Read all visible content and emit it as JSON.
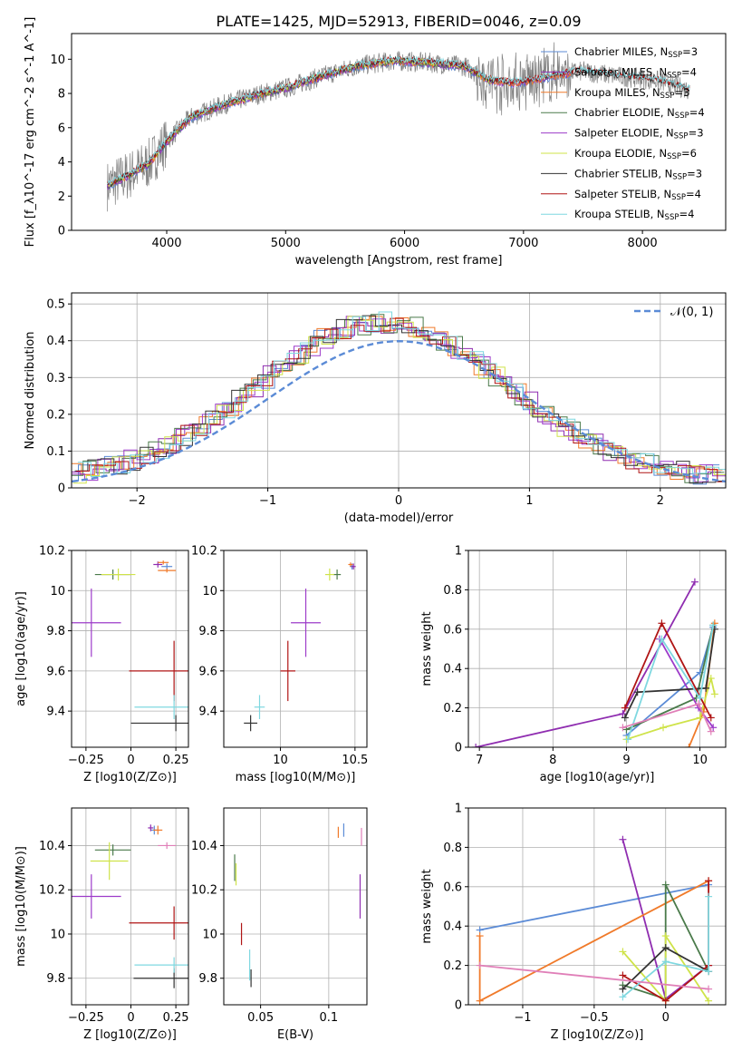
{
  "figure": {
    "title": "PLATE=1425, MJD=52913, FIBERID=0046, z=0.09"
  },
  "colors": {
    "Chabrier MILES": "#5b8bd6",
    "Salpeter MILES": "#8f2db0",
    "Kroupa MILES": "#f07a2a",
    "Chabrier ELODIE": "#4a7a4a",
    "Salpeter ELODIE": "#9d3bc9",
    "Kroupa ELODIE": "#cfe34a",
    "Chabrier STELIB": "#333333",
    "Salpeter STELIB": "#b01515",
    "Kroupa STELIB": "#7fd8e0"
  },
  "chart_data": [
    {
      "type": "line",
      "id": "spectrum",
      "xlabel": "wavelength [Angstrom, rest frame]",
      "ylabel": "Flux [f_λ10^-17 erg cm^-2 s^-1 A^-1]",
      "xlim": [
        3200,
        8700
      ],
      "ylim": [
        0,
        11.5
      ],
      "xticks": [
        4000,
        5000,
        6000,
        7000,
        8000
      ],
      "yticks": [
        0,
        2,
        4,
        6,
        8,
        10
      ],
      "legend_position": "top-right",
      "x_data_range": [
        3500,
        8400
      ],
      "data_trend": {
        "x": [
          3500,
          3700,
          3850,
          4000,
          4200,
          4500,
          4800,
          5000,
          5300,
          5600,
          5900,
          6200,
          6500,
          6700,
          6900,
          7100,
          7300,
          7500,
          7800,
          8100,
          8400
        ],
        "y": [
          2.6,
          3.3,
          3.9,
          5.2,
          6.6,
          7.4,
          8.0,
          8.3,
          9.0,
          9.6,
          9.9,
          9.8,
          9.6,
          8.8,
          8.6,
          8.8,
          9.1,
          9.3,
          9.0,
          8.8,
          8.2
        ]
      },
      "series": [
        {
          "name": "Chabrier MILES, N_SSP=3",
          "name_main": "Chabrier MILES, N",
          "name_sub": "SSP",
          "name_tail": "=3",
          "x_max": 7400
        },
        {
          "name": "Salpeter MILES, N_SSP=4",
          "name_main": "Salpeter MILES, N",
          "name_sub": "SSP",
          "name_tail": "=4",
          "x_max": 7400
        },
        {
          "name": "Kroupa MILES, N_SSP=3",
          "name_main": "Kroupa MILES, N",
          "name_sub": "SSP",
          "name_tail": "=3",
          "x_max": 7400
        },
        {
          "name": "Chabrier ELODIE, N_SSP=4",
          "name_main": "Chabrier ELODIE, N",
          "name_sub": "SSP",
          "name_tail": "=4",
          "x_max": 6800
        },
        {
          "name": "Salpeter ELODIE, N_SSP=3",
          "name_main": "Salpeter ELODIE, N",
          "name_sub": "SSP",
          "name_tail": "=3",
          "x_max": 6800
        },
        {
          "name": "Kroupa ELODIE, N_SSP=6",
          "name_main": "Kroupa ELODIE, N",
          "name_sub": "SSP",
          "name_tail": "=6",
          "x_max": 6800
        },
        {
          "name": "Chabrier STELIB, N_SSP=3",
          "name_main": "Chabrier STELIB, N",
          "name_sub": "SSP",
          "name_tail": "=3",
          "x_max": 8400
        },
        {
          "name": "Salpeter STELIB, N_SSP=4",
          "name_main": "Salpeter STELIB, N",
          "name_sub": "SSP",
          "name_tail": "=4",
          "x_max": 8400
        },
        {
          "name": "Kroupa STELIB, N_SSP=4",
          "name_main": "Kroupa STELIB, N",
          "name_sub": "SSP",
          "name_tail": "=4",
          "x_max": 8400
        }
      ]
    },
    {
      "type": "line",
      "id": "residuals",
      "xlabel": "(data-model)/error",
      "ylabel": "Normed distribution",
      "xlim": [
        -2.5,
        2.5
      ],
      "ylim": [
        0,
        0.53
      ],
      "xticks": [
        -2,
        -1,
        0,
        1,
        2
      ],
      "yticks": [
        0.0,
        0.1,
        0.2,
        0.3,
        0.4,
        0.5
      ],
      "legend": "𝒩(0, 1)",
      "legend_position": "top-right",
      "gaussian": {
        "mean": 0,
        "sigma": 1
      },
      "bins": 50,
      "grid": true
    },
    {
      "type": "scatter",
      "id": "age_vs_Z",
      "xlabel": "Z [log10(Z/Z⊙)]",
      "ylabel": "age [log10(age/yr)]",
      "xlim": [
        -0.33,
        0.32
      ],
      "ylim": [
        9.22,
        10.2
      ],
      "xticks": [
        -0.25,
        0.0,
        0.25
      ],
      "yticks": [
        9.4,
        9.6,
        9.8,
        10.0,
        10.2
      ],
      "grid": true,
      "points": [
        {
          "model": "Chabrier MILES",
          "x": 0.2,
          "y": 10.12,
          "xerr": 0.06,
          "yerr": 0.03
        },
        {
          "model": "Salpeter MILES",
          "x": 0.15,
          "y": 10.13,
          "xerr": 0.05,
          "yerr": 0.03
        },
        {
          "model": "Kroupa MILES",
          "x": 0.18,
          "y": 10.14,
          "xerr": 0.06,
          "yerr": 0.02
        },
        {
          "model": "Chabrier ELODIE",
          "x": -0.1,
          "y": 10.08,
          "xerr": 0.2,
          "yerr": 0.05
        },
        {
          "model": "Salpeter ELODIE",
          "x": -0.22,
          "y": 9.84,
          "xerr": 0.33,
          "yerr": 0.34
        },
        {
          "model": "Kroupa ELODIE",
          "x": -0.07,
          "y": 10.08,
          "xerr": 0.19,
          "yerr": 0.06
        },
        {
          "model": "Chabrier STELIB",
          "x": 0.25,
          "y": 9.34,
          "xerr": 0.5,
          "yerr": 0.08
        },
        {
          "model": "Salpeter STELIB",
          "x": 0.24,
          "y": 9.6,
          "xerr": 0.5,
          "yerr": 0.3
        },
        {
          "model": "Kroupa STELIB",
          "x": 0.24,
          "y": 9.42,
          "xerr": 0.44,
          "yerr": 0.12
        },
        {
          "model": "Kroupa MILES 2",
          "x": 0.2,
          "y": 10.1,
          "xerr": 0.1,
          "yerr": 0.02
        }
      ]
    },
    {
      "type": "scatter",
      "id": "age_vs_mass",
      "xlabel": "mass [log10(M/M⊙)]",
      "ylabel": "",
      "xlim": [
        9.62,
        10.58
      ],
      "ylim": [
        9.22,
        10.2
      ],
      "xticks": [
        10.0,
        10.5
      ],
      "yticks": [
        9.4,
        9.6,
        9.8,
        10.0,
        10.2
      ],
      "grid": true,
      "points": [
        {
          "model": "Chabrier MILES",
          "x": 10.48,
          "y": 10.12,
          "xerr": 0.03,
          "yerr": 0.03
        },
        {
          "model": "Salpeter MILES",
          "x": 10.49,
          "y": 10.12,
          "xerr": 0.03,
          "yerr": 0.03
        },
        {
          "model": "Kroupa MILES",
          "x": 10.47,
          "y": 10.13,
          "xerr": 0.03,
          "yerr": 0.02
        },
        {
          "model": "Chabrier ELODIE",
          "x": 10.38,
          "y": 10.08,
          "xerr": 0.05,
          "yerr": 0.05
        },
        {
          "model": "Salpeter ELODIE",
          "x": 10.17,
          "y": 9.84,
          "xerr": 0.2,
          "yerr": 0.34
        },
        {
          "model": "Kroupa ELODIE",
          "x": 10.33,
          "y": 10.08,
          "xerr": 0.06,
          "yerr": 0.06
        },
        {
          "model": "Chabrier STELIB",
          "x": 9.8,
          "y": 9.34,
          "xerr": 0.09,
          "yerr": 0.08
        },
        {
          "model": "Salpeter STELIB",
          "x": 10.05,
          "y": 9.6,
          "xerr": 0.1,
          "yerr": 0.3
        },
        {
          "model": "Kroupa STELIB",
          "x": 9.86,
          "y": 9.42,
          "xerr": 0.07,
          "yerr": 0.12
        }
      ]
    },
    {
      "type": "line",
      "id": "weight_vs_age",
      "xlabel": "age [log10(age/yr)]",
      "ylabel": "mass weight",
      "xlim": [
        6.85,
        10.35
      ],
      "ylim": [
        0,
        1.0
      ],
      "xticks": [
        7,
        8,
        9,
        10
      ],
      "yticks": [
        0.0,
        0.2,
        0.4,
        0.6,
        0.8,
        1.0
      ],
      "grid": true,
      "series": [
        {
          "model": "Chabrier MILES",
          "points": [
            [
              9.0,
              0.06
            ],
            [
              10.0,
              0.38
            ],
            [
              10.18,
              0.61
            ]
          ]
        },
        {
          "model": "Salpeter MILES",
          "points": [
            [
              6.95,
              0.0
            ],
            [
              8.95,
              0.17
            ],
            [
              9.93,
              0.84
            ]
          ]
        },
        {
          "model": "Kroupa MILES",
          "points": [
            [
              9.85,
              0.0
            ],
            [
              10.05,
              0.18
            ],
            [
              10.2,
              0.63
            ]
          ]
        },
        {
          "model": "Chabrier ELODIE",
          "points": [
            [
              9.0,
              0.09
            ],
            [
              9.95,
              0.25
            ],
            [
              10.18,
              0.62
            ]
          ]
        },
        {
          "model": "Salpeter ELODIE",
          "points": [
            [
              9.45,
              0.55
            ],
            [
              9.98,
              0.2
            ],
            [
              10.18,
              0.1
            ]
          ]
        },
        {
          "model": "Kroupa ELODIE",
          "points": [
            [
              9.0,
              0.04
            ],
            [
              9.5,
              0.1
            ],
            [
              10.0,
              0.15
            ],
            [
              10.15,
              0.35
            ],
            [
              10.2,
              0.27
            ]
          ]
        },
        {
          "model": "Chabrier STELIB",
          "points": [
            [
              8.98,
              0.15
            ],
            [
              9.15,
              0.28
            ],
            [
              10.08,
              0.3
            ],
            [
              10.2,
              0.6
            ]
          ]
        },
        {
          "model": "Salpeter STELIB",
          "points": [
            [
              8.98,
              0.2
            ],
            [
              9.48,
              0.63
            ],
            [
              10.15,
              0.15
            ]
          ]
        },
        {
          "model": "Kroupa STELIB",
          "points": [
            [
              9.02,
              0.04
            ],
            [
              9.48,
              0.55
            ],
            [
              10.0,
              0.25
            ],
            [
              10.18,
              0.62
            ]
          ]
        },
        {
          "model": "Kroupa MILES pink",
          "points": [
            [
              8.95,
              0.1
            ],
            [
              9.98,
              0.22
            ],
            [
              10.15,
              0.08
            ]
          ]
        }
      ]
    },
    {
      "type": "scatter",
      "id": "mass_vs_Z",
      "xlabel": "Z [log10(Z/Z⊙)]",
      "ylabel": "mass [log10(M/M⊙)]",
      "xlim": [
        -0.33,
        0.32
      ],
      "ylim": [
        9.68,
        10.57
      ],
      "xticks": [
        -0.25,
        0.0,
        0.25
      ],
      "yticks": [
        9.8,
        10.0,
        10.2,
        10.4
      ],
      "grid": true,
      "points": [
        {
          "model": "Chabrier MILES",
          "x": 0.13,
          "y": 10.47,
          "xerr": 0.04,
          "yerr": 0.04
        },
        {
          "model": "Salpeter MILES",
          "x": 0.11,
          "y": 10.48,
          "xerr": 0.03,
          "yerr": 0.03
        },
        {
          "model": "Kroupa MILES",
          "x": 0.15,
          "y": 10.47,
          "xerr": 0.05,
          "yerr": 0.04
        },
        {
          "model": "Chabrier ELODIE",
          "x": -0.1,
          "y": 10.38,
          "xerr": 0.2,
          "yerr": 0.05
        },
        {
          "model": "Salpeter ELODIE",
          "x": -0.22,
          "y": 10.17,
          "xerr": 0.33,
          "yerr": 0.2
        },
        {
          "model": "Kroupa ELODIE",
          "x": -0.12,
          "y": 10.33,
          "xerr": 0.21,
          "yerr": 0.17
        },
        {
          "model": "Chabrier STELIB",
          "x": 0.24,
          "y": 9.8,
          "xerr": 0.45,
          "yerr": 0.09
        },
        {
          "model": "Salpeter STELIB",
          "x": 0.24,
          "y": 10.05,
          "xerr": 0.5,
          "yerr": 0.15
        },
        {
          "model": "Kroupa STELIB",
          "x": 0.24,
          "y": 9.86,
          "xerr": 0.44,
          "yerr": 0.07
        },
        {
          "model": "Kroupa MILES pink",
          "x": 0.2,
          "y": 10.4,
          "xerr": 0.1,
          "yerr": 0.03
        }
      ]
    },
    {
      "type": "scatter",
      "id": "mass_vs_EBV",
      "xlabel": "E(B-V)",
      "ylabel": "",
      "xlim": [
        0.023,
        0.128
      ],
      "ylim": [
        9.68,
        10.57
      ],
      "xticks": [
        0.05,
        0.1
      ],
      "yticks": [
        9.8,
        10.0,
        10.2,
        10.4
      ],
      "grid": true,
      "points": [
        {
          "model": "Chabrier MILES",
          "x": 0.111,
          "y": 10.47,
          "yerr": 0.06
        },
        {
          "model": "Salpeter MILES",
          "x": 0.123,
          "y": 10.17,
          "yerr": 0.2
        },
        {
          "model": "Kroupa MILES",
          "x": 0.107,
          "y": 10.46,
          "yerr": 0.05
        },
        {
          "model": "Chabrier ELODIE",
          "x": 0.031,
          "y": 10.3,
          "yerr": 0.12
        },
        {
          "model": "Kroupa ELODIE",
          "x": 0.032,
          "y": 10.27,
          "yerr": 0.1
        },
        {
          "model": "Chabrier STELIB",
          "x": 0.043,
          "y": 9.8,
          "yerr": 0.08
        },
        {
          "model": "Salpeter STELIB",
          "x": 0.036,
          "y": 10.0,
          "yerr": 0.1
        },
        {
          "model": "Kroupa STELIB",
          "x": 0.042,
          "y": 9.86,
          "yerr": 0.14
        },
        {
          "model": "Kroupa MILES pink",
          "x": 0.124,
          "y": 10.44,
          "yerr": 0.08
        }
      ]
    },
    {
      "type": "line",
      "id": "weight_vs_Z",
      "xlabel": "Z [log10(Z/Z⊙)]",
      "ylabel": "mass weight",
      "xlim": [
        -1.38,
        0.42
      ],
      "ylim": [
        0,
        1.0
      ],
      "xticks": [
        -1.0,
        -0.5,
        0.0
      ],
      "yticks": [
        0.0,
        0.2,
        0.4,
        0.6,
        0.8,
        1.0
      ],
      "grid": true,
      "series": [
        {
          "model": "Chabrier MILES",
          "points": [
            [
              -1.3,
              0.38
            ],
            [
              0.3,
              0.61
            ]
          ]
        },
        {
          "model": "Salpeter MILES",
          "points": [
            [
              -0.3,
              0.84
            ],
            [
              0.0,
              0.03
            ],
            [
              0.3,
              0.2
            ]
          ]
        },
        {
          "model": "Kroupa MILES",
          "points": [
            [
              -1.3,
              0.35
            ],
            [
              -1.3,
              0.02
            ],
            [
              0.3,
              0.63
            ]
          ]
        },
        {
          "model": "Chabrier ELODIE",
          "points": [
            [
              -0.3,
              0.1
            ],
            [
              0.0,
              0.03
            ],
            [
              0.0,
              0.61
            ],
            [
              0.3,
              0.17
            ]
          ]
        },
        {
          "model": "Kroupa ELODIE",
          "points": [
            [
              -0.3,
              0.27
            ],
            [
              0.0,
              0.02
            ],
            [
              0.0,
              0.35
            ],
            [
              0.3,
              0.02
            ]
          ]
        },
        {
          "model": "Chabrier STELIB",
          "points": [
            [
              -0.3,
              0.08
            ],
            [
              0.0,
              0.29
            ],
            [
              0.3,
              0.17
            ]
          ]
        },
        {
          "model": "Salpeter STELIB",
          "points": [
            [
              -0.3,
              0.15
            ],
            [
              0.0,
              0.02
            ],
            [
              0.3,
              0.2
            ],
            [
              0.3,
              0.63
            ]
          ]
        },
        {
          "model": "Kroupa STELIB",
          "points": [
            [
              -0.3,
              0.04
            ],
            [
              0.0,
              0.22
            ],
            [
              0.3,
              0.17
            ],
            [
              0.3,
              0.55
            ]
          ]
        },
        {
          "model": "Kroupa MILES pink",
          "points": [
            [
              -1.3,
              0.2
            ],
            [
              0.3,
              0.08
            ]
          ]
        }
      ]
    }
  ]
}
